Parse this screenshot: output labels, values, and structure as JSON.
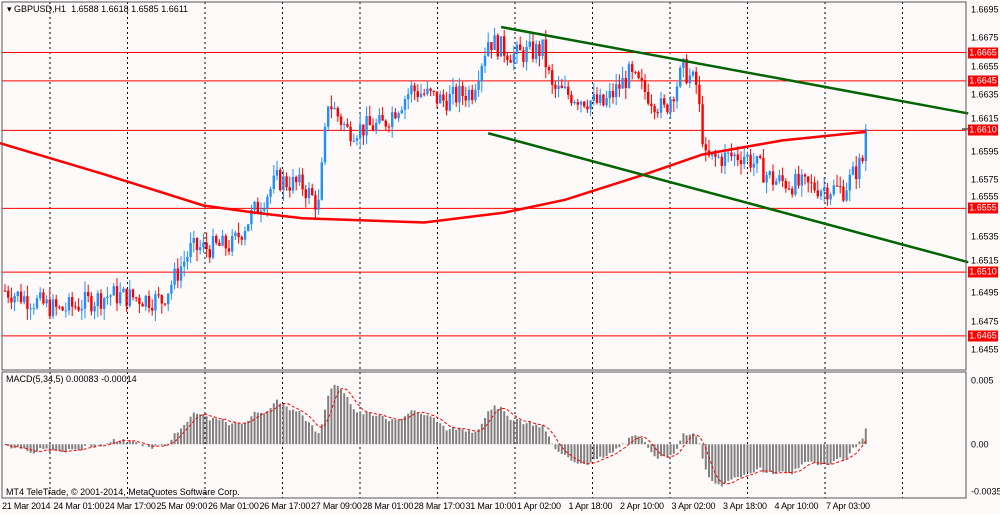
{
  "header": {
    "symbol": "GBPUSD,H1",
    "open": "1.6588",
    "high": "1.6618",
    "low": "1.6585",
    "close": "1.6611"
  },
  "macd": {
    "label": "MACD(5,34,5)",
    "main": "0.00083",
    "signal": "-0.00014",
    "axis_labels": [
      "0.005",
      "0.00",
      "-0.00357"
    ]
  },
  "copyright": "MT4 TeleTrade, © 2001-2014, MetaQuotes Software Corp.",
  "colors": {
    "background": "#fffafa",
    "bull": "#1e90ff",
    "bear": "#ff0000",
    "ma": "#ff0000",
    "trend": "#006400",
    "level": "#ff0000",
    "histogram": "#808080"
  },
  "chart_data": {
    "type": "candlestick",
    "price_axis": {
      "max": 1.6695,
      "min": 1.6455,
      "ticks": [
        "1.6695",
        "1.6675",
        "1.6655",
        "1.6635",
        "1.6615",
        "1.6595",
        "1.6575",
        "1.6555",
        "1.6535",
        "1.6515",
        "1.6495",
        "1.6475",
        "1.6455"
      ]
    },
    "time_labels": [
      "21 Mar 2014",
      "24 Mar 01:00",
      "24 Mar 17:00",
      "25 Mar 09:00",
      "26 Mar 01:00",
      "26 Mar 17:00",
      "27 Mar 09:00",
      "28 Mar 01:00",
      "28 Mar 17:00",
      "31 Mar 10:00",
      "1 Apr 02:00",
      "1 Apr 18:00",
      "2 Apr 10:00",
      "3 Apr 02:00",
      "3 Apr 18:00",
      "4 Apr 10:00",
      "7 Apr 03:00"
    ],
    "bars": 270,
    "close_path": [
      [
        0,
        1.6497
      ],
      [
        17,
        1.6483
      ],
      [
        33,
        1.6494
      ],
      [
        49,
        1.649
      ],
      [
        58,
        1.6526
      ],
      [
        71,
        1.6529
      ],
      [
        77,
        1.655
      ],
      [
        85,
        1.6575
      ],
      [
        93,
        1.6571
      ],
      [
        98,
        1.6557
      ],
      [
        101,
        1.6631
      ],
      [
        107,
        1.661
      ],
      [
        118,
        1.6614
      ],
      [
        127,
        1.6639
      ],
      [
        137,
        1.6631
      ],
      [
        146,
        1.6638
      ],
      [
        151,
        1.6674
      ],
      [
        159,
        1.6663
      ],
      [
        168,
        1.6667
      ],
      [
        171,
        1.6639
      ],
      [
        187,
        1.6628
      ],
      [
        195,
        1.6649
      ],
      [
        206,
        1.6624
      ],
      [
        212,
        1.6653
      ],
      [
        216,
        1.6642
      ],
      [
        219,
        1.6589
      ],
      [
        231,
        1.6593
      ],
      [
        240,
        1.6575
      ],
      [
        249,
        1.6571
      ],
      [
        262,
        1.6568
      ],
      [
        268,
        1.6589
      ],
      [
        269,
        1.6611
      ]
    ],
    "moving_average": [
      [
        0,
        1.6601
      ],
      [
        31,
        1.6579
      ],
      [
        62,
        1.6557
      ],
      [
        78,
        1.6552
      ],
      [
        93,
        1.6548
      ],
      [
        131,
        1.6545
      ],
      [
        156,
        1.6552
      ],
      [
        175,
        1.6561
      ],
      [
        200,
        1.6579
      ],
      [
        218,
        1.6593
      ],
      [
        243,
        1.6603
      ],
      [
        269,
        1.6609
      ]
    ],
    "horizontal_levels": [
      "1.6665",
      "1.6645",
      "1.6610",
      "1.6555",
      "1.6510",
      "1.6465"
    ],
    "trendlines": [
      {
        "name": "upper",
        "from": [
          155,
          1.6683
        ],
        "to": [
          301,
          1.6622
        ]
      },
      {
        "name": "lower",
        "from": [
          151,
          1.6608
        ],
        "to": [
          301,
          1.6517
        ]
      }
    ],
    "current_price": 1.6611,
    "macd_range": [
      -0.00357,
      0.005
    ]
  }
}
